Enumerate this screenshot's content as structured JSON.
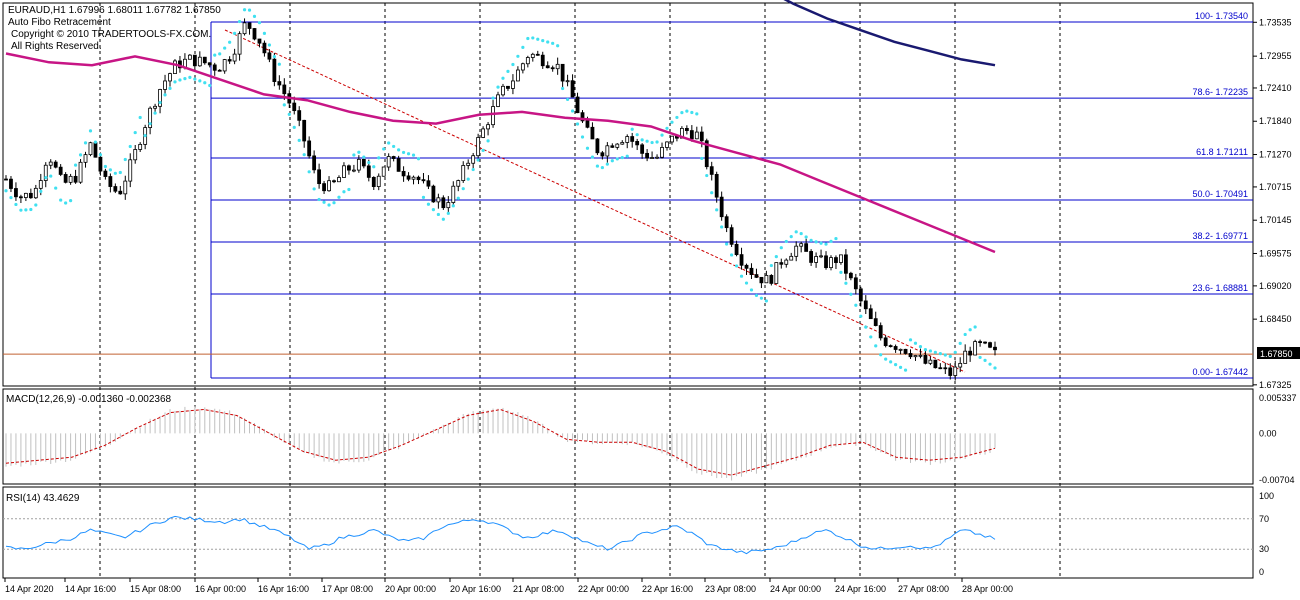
{
  "header": {
    "symbol_line": "EURAUD,H1  1.67996 1.68011 1.67782 1.67850",
    "indicator_name": "Auto Fibo Retracement",
    "copyright": "Copyright © 2010 TRADERTOOLS-FX.COM.",
    "rights": "All Rights Reserved."
  },
  "price_axis": {
    "labels": [
      "1.73535",
      "1.72955",
      "1.72410",
      "1.71840",
      "1.71270",
      "1.70715",
      "1.70145",
      "1.69575",
      "1.69020",
      "1.68450",
      "1.67325"
    ],
    "current_price": "1.67850"
  },
  "fibo_levels": [
    {
      "label": "100- 1.73540"
    },
    {
      "label": "78.6- 1.72235"
    },
    {
      "label": "61.8 1.71211"
    },
    {
      "label": "50.0- 1.70491"
    },
    {
      "label": "38.2- 1.69771"
    },
    {
      "label": "23.6- 1.68881"
    },
    {
      "label": "0.00- 1.67442"
    }
  ],
  "macd": {
    "title": "MACD(12,26,9) -0.001360 -0.002368",
    "labels": [
      "0.005337",
      "0.00",
      "-0.00704"
    ]
  },
  "rsi": {
    "title": "RSI(14) 43.4629",
    "labels": [
      "100",
      "70",
      "30",
      "0"
    ]
  },
  "time_axis": {
    "labels": [
      "14 Apr 2020",
      "14 Apr 16:00",
      "15 Apr 08:00",
      "16 Apr 00:00",
      "16 Apr 16:00",
      "17 Apr 08:00",
      "20 Apr 00:00",
      "20 Apr 16:00",
      "21 Apr 08:00",
      "22 Apr 00:00",
      "22 Apr 16:00",
      "23 Apr 08:00",
      "24 Apr 00:00",
      "24 Apr 16:00",
      "27 Apr 08:00",
      "28 Apr 00:00"
    ]
  },
  "colors": {
    "candle": "#000000",
    "ma_fast": "#c71585",
    "ma_slow": "#191970",
    "sar": "#40e0f0",
    "fibo": "#0000cc",
    "trend": "#cc0000",
    "price_line": "#c06030",
    "macd_hist": "#c0c0c0",
    "signal": "#cc0000",
    "rsi": "#1e90ff"
  },
  "chart_data": [
    {
      "type": "candlestick",
      "symbol": "EURAUD",
      "timeframe": "H1",
      "x": [
        "14 Apr 2020",
        "14 Apr 16:00",
        "15 Apr 08:00",
        "16 Apr 00:00",
        "16 Apr 16:00",
        "17 Apr 08:00",
        "20 Apr 00:00",
        "20 Apr 16:00",
        "21 Apr 08:00",
        "22 Apr 00:00",
        "22 Apr 16:00",
        "23 Apr 08:00",
        "24 Apr 00:00",
        "24 Apr 16:00",
        "27 Apr 08:00",
        "28 Apr 00:00"
      ],
      "close_path": [
        1.7085,
        1.7055,
        1.706,
        1.713,
        1.7075,
        1.709,
        1.7145,
        1.708,
        1.706,
        1.712,
        1.719,
        1.7245,
        1.728,
        1.729,
        1.7285,
        1.7275,
        1.73,
        1.7354,
        1.732,
        1.726,
        1.722,
        1.716,
        1.708,
        1.707,
        1.71,
        1.711,
        1.708,
        1.712,
        1.71,
        1.709,
        1.706,
        1.704,
        1.708,
        1.713,
        1.718,
        1.723,
        1.726,
        1.73,
        1.729,
        1.728,
        1.723,
        1.717,
        1.713,
        1.715,
        1.716,
        1.713,
        1.712,
        1.715,
        1.717,
        1.716,
        1.708,
        1.7,
        1.695,
        1.692,
        1.691,
        1.695,
        1.697,
        1.695,
        1.694,
        1.695,
        1.69,
        1.685,
        1.681,
        1.68,
        1.679,
        1.677,
        1.676,
        1.675,
        1.679,
        1.68,
        1.6785
      ],
      "moving_average_fast": [
        1.73,
        1.7285,
        1.728,
        1.7295,
        1.728,
        1.7255,
        1.723,
        1.722,
        1.72,
        1.7185,
        1.718,
        1.7195,
        1.72,
        1.719,
        1.7185,
        1.7175,
        1.715,
        1.713,
        1.711,
        1.708,
        1.705,
        1.702,
        1.699,
        1.696
      ],
      "moving_average_slow": [
        1.7415,
        1.7385,
        1.736,
        1.734,
        1.732,
        1.7305,
        1.729,
        1.728
      ],
      "fibo_levels": [
        1.7354,
        1.72235,
        1.71211,
        1.70491,
        1.69771,
        1.68881,
        1.67442
      ],
      "current_price": 1.6785,
      "ylim": [
        1.672,
        1.7382
      ]
    },
    {
      "type": "line",
      "title": "MACD(12,26,9)",
      "main": -0.00136,
      "signal": -0.002368,
      "signal_path": [
        -0.005,
        -0.0045,
        -0.004,
        -0.002,
        0.001,
        0.0035,
        0.004,
        0.003,
        0.0,
        -0.003,
        -0.0045,
        -0.004,
        -0.002,
        0.0005,
        0.003,
        0.004,
        0.002,
        -0.001,
        -0.0015,
        -0.0015,
        -0.003,
        -0.006,
        -0.007,
        -0.0055,
        -0.004,
        -0.002,
        -0.0015,
        -0.004,
        -0.0045,
        -0.004,
        -0.0025
      ],
      "ylim": [
        -0.00704,
        0.005337
      ]
    },
    {
      "type": "line",
      "title": "RSI(14)",
      "value": 43.4629,
      "levels": [
        70,
        30
      ],
      "path": [
        32,
        30,
        35,
        40,
        45,
        55,
        50,
        45,
        55,
        65,
        72,
        70,
        68,
        66,
        70,
        62,
        55,
        45,
        30,
        35,
        45,
        50,
        55,
        45,
        40,
        45,
        60,
        65,
        70,
        65,
        55,
        45,
        50,
        55,
        45,
        35,
        30,
        40,
        50,
        55,
        60,
        50,
        35,
        30,
        25,
        28,
        32,
        40,
        50,
        55,
        45,
        35,
        30,
        33,
        35,
        30,
        40,
        55,
        50,
        43
      ],
      "ylim": [
        0,
        100
      ]
    }
  ]
}
